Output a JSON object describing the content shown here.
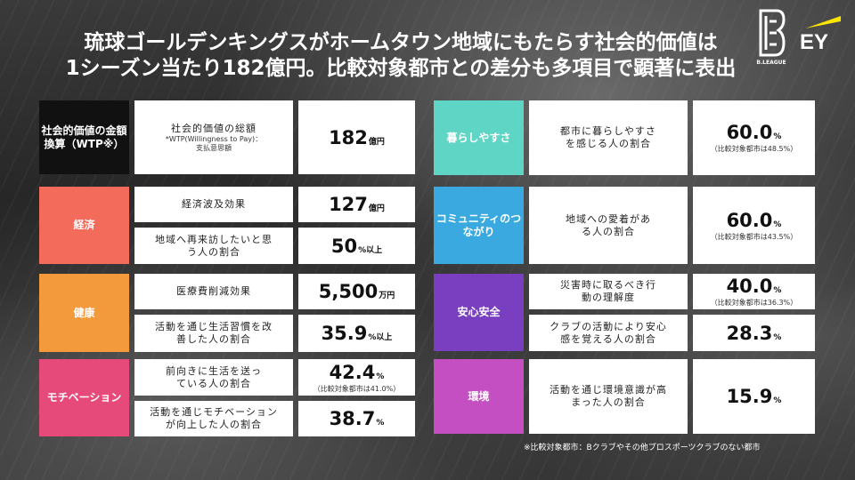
{
  "title": {
    "line1": "琉球ゴールデンキングスがホームタウン地域にもたらす社会的価値は",
    "line2": "1シーズン当たり182億円。比較対象都市との差分も多項目で顕著に表出"
  },
  "logos": {
    "bleague": "B.LEAGUE",
    "ey": "EY"
  },
  "colors": {
    "black": "#111111",
    "red": "#f26b5b",
    "orange": "#f39a3c",
    "pink": "#e64a7b",
    "mint": "#5fd6c5",
    "blue": "#3aa9e0",
    "purple": "#7a3fc0",
    "magenta": "#c44fc2"
  },
  "left": {
    "total": {
      "label": "社会的価値の金額換算（WTP※）",
      "desc": "社会的価値の総額",
      "desc_sub1": "*WTP(Willingness to Pay)：",
      "desc_sub2": "支払意思額",
      "value": "182",
      "unit": "億円"
    },
    "economy": {
      "label": "経済",
      "rows": [
        {
          "desc": "経済波及効果",
          "value": "127",
          "unit": "億円"
        },
        {
          "desc": "地域へ再来訪したいと思う人の割合",
          "value": "50",
          "unit": "%以上"
        }
      ]
    },
    "health": {
      "label": "健康",
      "rows": [
        {
          "desc": "医療費削減効果",
          "value": "5,500",
          "unit": "万円"
        },
        {
          "desc": "活動を通じ生活習慣を改善した人の割合",
          "value": "35.9",
          "unit": "%以上"
        }
      ]
    },
    "motivation": {
      "label": "モチベーション",
      "rows": [
        {
          "desc": "前向きに生活を送っている人の割合",
          "value": "42.4",
          "unit": "%",
          "note": "（比較対象都市は41.0%）"
        },
        {
          "desc": "活動を通じモチベーションが向上した人の割合",
          "value": "38.7",
          "unit": "%"
        }
      ]
    }
  },
  "right": {
    "living": {
      "label": "暮らしやすさ",
      "desc": "都市に暮らしやすさを感じる人の割合",
      "value": "60.0",
      "unit": "%",
      "note": "（比較対象都市は48.5%）"
    },
    "community": {
      "label": "コミュニティのつながり",
      "desc": "地域への愛着がある人の割合",
      "value": "60.0",
      "unit": "%",
      "note": "（比較対象都市は43.5%）"
    },
    "safety": {
      "label": "安心安全",
      "rows": [
        {
          "desc": "災害時に取るべき行動の理解度",
          "value": "40.0",
          "unit": "%",
          "note": "（比較対象都市は36.3%）"
        },
        {
          "desc": "クラブの活動により安心感を覚える人の割合",
          "value": "28.3",
          "unit": "%"
        }
      ]
    },
    "environment": {
      "label": "環境",
      "desc": "活動を通じ環境意識が高まった人の割合",
      "value": "15.9",
      "unit": "%"
    }
  },
  "footnote": "※比較対象都市：Bクラブやその他プロスポーツクラブのない都市"
}
